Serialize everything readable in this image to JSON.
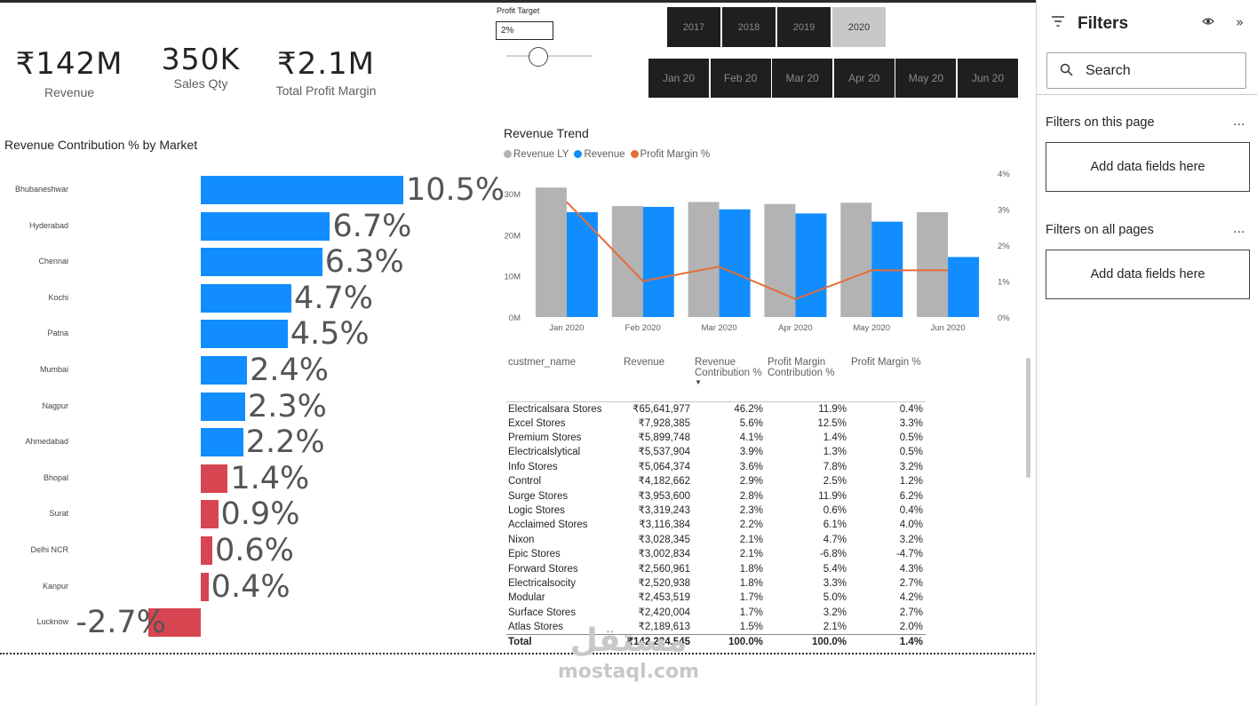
{
  "kpis": [
    {
      "value": "₹142M",
      "label": "Revenue"
    },
    {
      "value": "350K",
      "label": "Sales Qty"
    },
    {
      "value": "₹2.1M",
      "label": "Total Profit Margin"
    }
  ],
  "slider": {
    "label": "Profit Target",
    "value": "2%",
    "level_percent": 25
  },
  "year_slicer": {
    "items": [
      "2017",
      "2018",
      "2019",
      "2020"
    ],
    "selected": "2020"
  },
  "month_slicer": {
    "items": [
      "Jan 20",
      "Feb 20",
      "Mar 20",
      "Apr 20",
      "May 20",
      "Jun 20"
    ]
  },
  "market_chart": {
    "title": "Revenue Contribution % by Market",
    "positive_color": "#118DFF",
    "negative_color": "#D64550"
  },
  "revenue_trend": {
    "title": "Revenue Trend",
    "legend": [
      {
        "name": "Revenue LY",
        "color": "#B3B3B3"
      },
      {
        "name": "Revenue",
        "color": "#118DFF"
      },
      {
        "name": "Profit Margin %",
        "color": "#E66C37"
      }
    ],
    "y_left_ticks": [
      "0M",
      "10M",
      "20M",
      "30M"
    ],
    "y_right_ticks": [
      "0%",
      "1%",
      "2%",
      "3%",
      "4%"
    ]
  },
  "chart_data": [
    {
      "type": "bar",
      "title": "Revenue Contribution % by Market",
      "orientation": "horizontal",
      "categories": [
        "Bhubaneshwar",
        "Hyderabad",
        "Chennai",
        "Kochi",
        "Patna",
        "Mumbai",
        "Nagpur",
        "Ahmedabad",
        "Bhopal",
        "Surat",
        "Delhi NCR",
        "Kanpur",
        "Lucknow"
      ],
      "values": [
        10.5,
        6.7,
        6.3,
        4.7,
        4.5,
        2.4,
        2.3,
        2.2,
        1.4,
        0.9,
        0.6,
        0.4,
        -2.7
      ],
      "labels": [
        "10.5%",
        "6.7%",
        "6.3%",
        "4.7%",
        "4.5%",
        "2.4%",
        "2.3%",
        "2.2%",
        "1.4%",
        "0.9%",
        "0.6%",
        "0.4%",
        "-2.7%"
      ]
    },
    {
      "type": "bar",
      "title": "Revenue Trend",
      "categories": [
        "Jan 2020",
        "Feb 2020",
        "Mar 2020",
        "Apr 2020",
        "May 2020",
        "Jun 2020"
      ],
      "series": [
        {
          "name": "Revenue LY",
          "values": [
            31.5,
            27.0,
            28.0,
            27.5,
            27.8,
            25.5
          ]
        },
        {
          "name": "Revenue",
          "values": [
            25.5,
            26.8,
            26.2,
            25.2,
            23.2,
            14.6
          ]
        },
        {
          "name": "Profit Margin %",
          "type": "line",
          "axis": "right",
          "values": [
            3.2,
            1.0,
            1.4,
            0.5,
            1.3,
            1.3
          ]
        }
      ],
      "ylim": [
        0,
        35
      ],
      "y2lim": [
        0,
        4
      ]
    }
  ],
  "table": {
    "headers": [
      "custmer_name",
      "Revenue",
      "Revenue Contribution %",
      "Profit Margin Contribution %",
      "Profit Margin %"
    ],
    "rows": [
      [
        "Electricalsara Stores",
        "₹65,641,977",
        "46.2%",
        "11.9%",
        "0.4%"
      ],
      [
        "Excel Stores",
        "₹7,928,385",
        "5.6%",
        "12.5%",
        "3.3%"
      ],
      [
        "Premium Stores",
        "₹5,899,748",
        "4.1%",
        "1.4%",
        "0.5%"
      ],
      [
        "Electricalslytical",
        "₹5,537,904",
        "3.9%",
        "1.3%",
        "0.5%"
      ],
      [
        "Info Stores",
        "₹5,064,374",
        "3.6%",
        "7.8%",
        "3.2%"
      ],
      [
        "Control",
        "₹4,182,662",
        "2.9%",
        "2.5%",
        "1.2%"
      ],
      [
        "Surge Stores",
        "₹3,953,600",
        "2.8%",
        "11.9%",
        "6.2%"
      ],
      [
        "Logic Stores",
        "₹3,319,243",
        "2.3%",
        "0.6%",
        "0.4%"
      ],
      [
        "Acclaimed Stores",
        "₹3,116,384",
        "2.2%",
        "6.1%",
        "4.0%"
      ],
      [
        "Nixon",
        "₹3,028,345",
        "2.1%",
        "4.7%",
        "3.2%"
      ],
      [
        "Epic Stores",
        "₹3,002,834",
        "2.1%",
        "-6.8%",
        "-4.7%"
      ],
      [
        "Forward Stores",
        "₹2,560,961",
        "1.8%",
        "5.4%",
        "4.3%"
      ],
      [
        "Electricalsocity",
        "₹2,520,938",
        "1.8%",
        "3.3%",
        "2.7%"
      ],
      [
        "Modular",
        "₹2,453,519",
        "1.7%",
        "5.0%",
        "4.2%"
      ],
      [
        "Surface Stores",
        "₹2,420,004",
        "1.7%",
        "3.2%",
        "2.7%"
      ],
      [
        "Atlas Stores",
        "₹2,189,613",
        "1.5%",
        "2.1%",
        "2.0%"
      ]
    ],
    "total": [
      "Total",
      "₹142,224,545",
      "100.0%",
      "100.0%",
      "1.4%"
    ]
  },
  "filters_pane": {
    "title": "Filters",
    "search_label": "Search",
    "this_page_label": "Filters on this page",
    "all_pages_label": "Filters on all pages",
    "drop_label": "Add data fields here",
    "more_glyph": "..."
  },
  "watermark": {
    "brand": "مستقل",
    "site": "mostaql.com"
  }
}
